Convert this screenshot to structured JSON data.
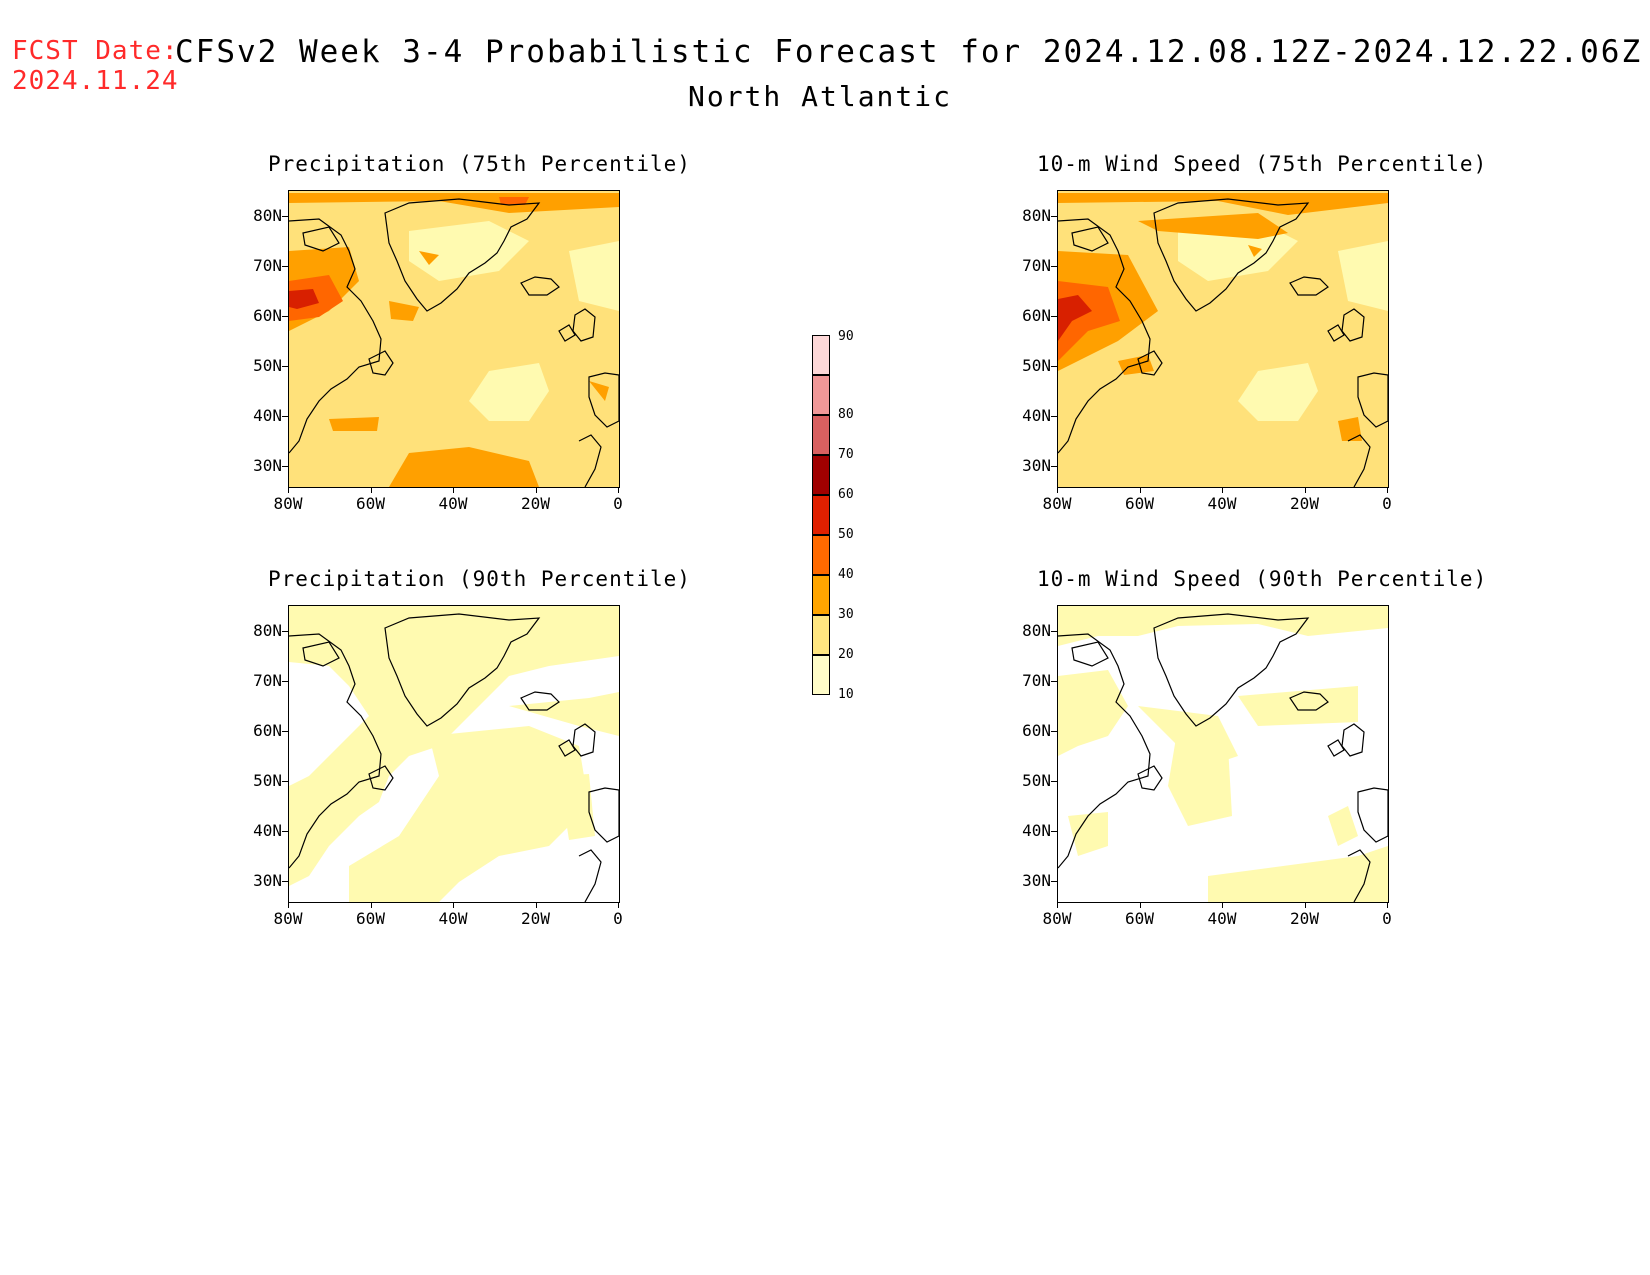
{
  "header": {
    "fcst_label": "FCST Date:",
    "fcst_date": "2024.11.24",
    "title": "CFSv2 Week 3-4 Probabilistic Forecast for 2024.12.08.12Z-2024.12.22.06Z",
    "subtitle": "North Atlantic"
  },
  "panels": [
    {
      "title": "Precipitation (75th Percentile)",
      "variable": "precipitation",
      "percentile": "75th"
    },
    {
      "title": "10-m Wind Speed (75th Percentile)",
      "variable": "wind_speed_10m",
      "percentile": "75th"
    },
    {
      "title": "Precipitation (90th Percentile)",
      "variable": "precipitation",
      "percentile": "90th"
    },
    {
      "title": "10-m Wind Speed (90th Percentile)",
      "variable": "wind_speed_10m",
      "percentile": "90th"
    }
  ],
  "axes": {
    "lat_labels": [
      "80N",
      "70N",
      "60N",
      "50N",
      "40N",
      "30N"
    ],
    "lon_labels": [
      "80W",
      "60W",
      "40W",
      "20W",
      "0"
    ]
  },
  "colorbar": {
    "levels": [
      "10",
      "20",
      "30",
      "40",
      "50",
      "60",
      "70",
      "80",
      "90"
    ],
    "colors": [
      "#fffcc8",
      "#ffe680",
      "#ffa500",
      "#ff6a00",
      "#e02000",
      "#a00000",
      "#d86060",
      "#f09898",
      "#fdd8d8"
    ]
  },
  "colors": {
    "ocean_light": "#fffab0",
    "ocean_mid": "#ffe17a",
    "hot_orange": "#ffa000",
    "dark_orange": "#ff6600",
    "red": "#d82000",
    "header_red": "#ff2a2a"
  }
}
